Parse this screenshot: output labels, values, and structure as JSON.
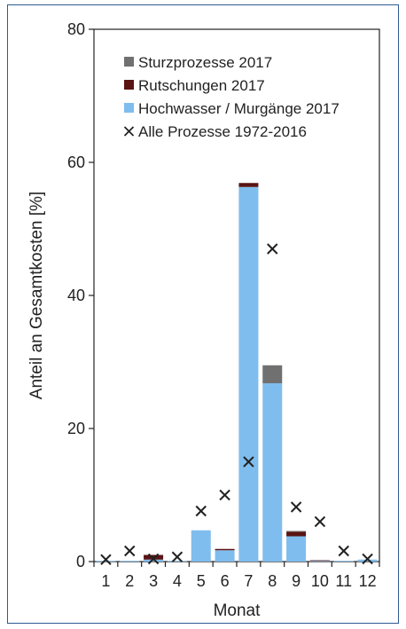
{
  "chart_data": {
    "type": "bar",
    "stacked": true,
    "xlabel": "Monat",
    "ylabel": "Anteil an Gesamtkosten [%]",
    "ylim": [
      0,
      80
    ],
    "yticks": [
      0,
      20,
      40,
      60,
      80
    ],
    "grid": false,
    "legend_position": "top-right",
    "categories": [
      "1",
      "2",
      "3",
      "4",
      "5",
      "6",
      "7",
      "8",
      "9",
      "10",
      "11",
      "12"
    ],
    "series": [
      {
        "name": "Hochwasser / Murgänge 2017",
        "kind": "bar",
        "color": "#7fbdee",
        "values": [
          0.1,
          0.1,
          0.3,
          0.1,
          4.7,
          1.7,
          56.3,
          26.8,
          3.8,
          0.1,
          0.1,
          0.3
        ]
      },
      {
        "name": "Rutschungen 2017",
        "kind": "bar",
        "color": "#5a1414",
        "values": [
          0.0,
          0.0,
          0.7,
          0.0,
          0.0,
          0.2,
          0.6,
          0.0,
          0.7,
          0.1,
          0.0,
          0.0
        ]
      },
      {
        "name": "Sturzprozesse 2017",
        "kind": "bar",
        "color": "#707070",
        "values": [
          0.0,
          0.0,
          0.0,
          0.0,
          0.0,
          0.0,
          0.0,
          2.7,
          0.1,
          0.0,
          0.0,
          0.0
        ]
      },
      {
        "name": "Alle Prozesse 1972-2016",
        "kind": "marker",
        "marker": "x",
        "color": "#222222",
        "values": [
          0.3,
          1.6,
          0.4,
          0.7,
          7.6,
          10.0,
          15.0,
          47.0,
          8.2,
          6.0,
          1.6,
          0.4
        ]
      }
    ],
    "legend_order": [
      "Sturzprozesse 2017",
      "Rutschungen 2017",
      "Hochwasser / Murgänge 2017",
      "Alle Prozesse 1972-2016"
    ]
  }
}
